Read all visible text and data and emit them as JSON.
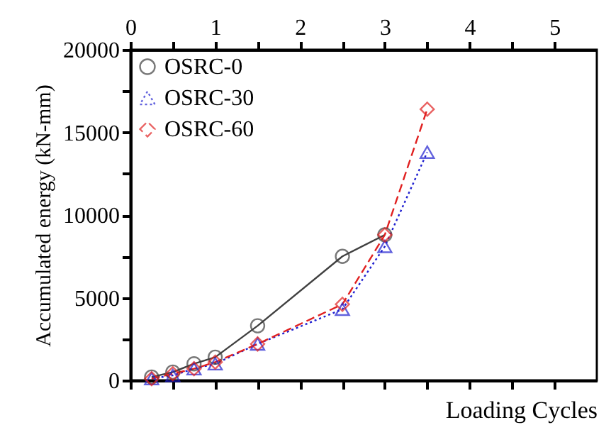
{
  "chart_data": {
    "type": "line",
    "xlabel": "Loading Cycles",
    "ylabel": "Accumulated energy (kN-mm)",
    "x": [
      0.25,
      0.5,
      0.75,
      1,
      1.5,
      2.5,
      3,
      3.5
    ],
    "series": [
      {
        "name": "OSRC-0",
        "color": "#404040",
        "marker": "circle",
        "line_style": "solid",
        "values": [
          200,
          500,
          1000,
          1400,
          3300,
          7500,
          8800,
          null
        ]
      },
      {
        "name": "OSRC-30",
        "color": "#2020d0",
        "marker": "triangle",
        "line_style": "dotted",
        "values": [
          100,
          300,
          700,
          1000,
          2200,
          4300,
          8100,
          13800
        ]
      },
      {
        "name": "OSRC-60",
        "color": "#e02020",
        "marker": "diamond",
        "line_style": "dashed",
        "values": [
          100,
          400,
          700,
          1100,
          2200,
          4600,
          8800,
          16400
        ]
      }
    ],
    "xlim": [
      0,
      5.5
    ],
    "xticks": [
      0,
      {
        "value": 0.5,
        "label": null
      },
      1,
      {
        "value": 1.5,
        "label": null
      },
      2,
      {
        "value": 2.5,
        "label": null
      },
      3,
      {
        "value": 3.5,
        "label": null
      },
      4,
      {
        "value": 4.5,
        "label": null
      },
      5
    ],
    "ylim": [
      0,
      20000
    ],
    "yticks": [
      0,
      {
        "value": 2500,
        "label": null
      },
      5000,
      {
        "value": 7500,
        "label": null
      },
      10000,
      {
        "value": 12500,
        "label": null
      },
      15000,
      {
        "value": 17500,
        "label": null
      },
      20000
    ],
    "grid": false,
    "legend": "top left"
  }
}
